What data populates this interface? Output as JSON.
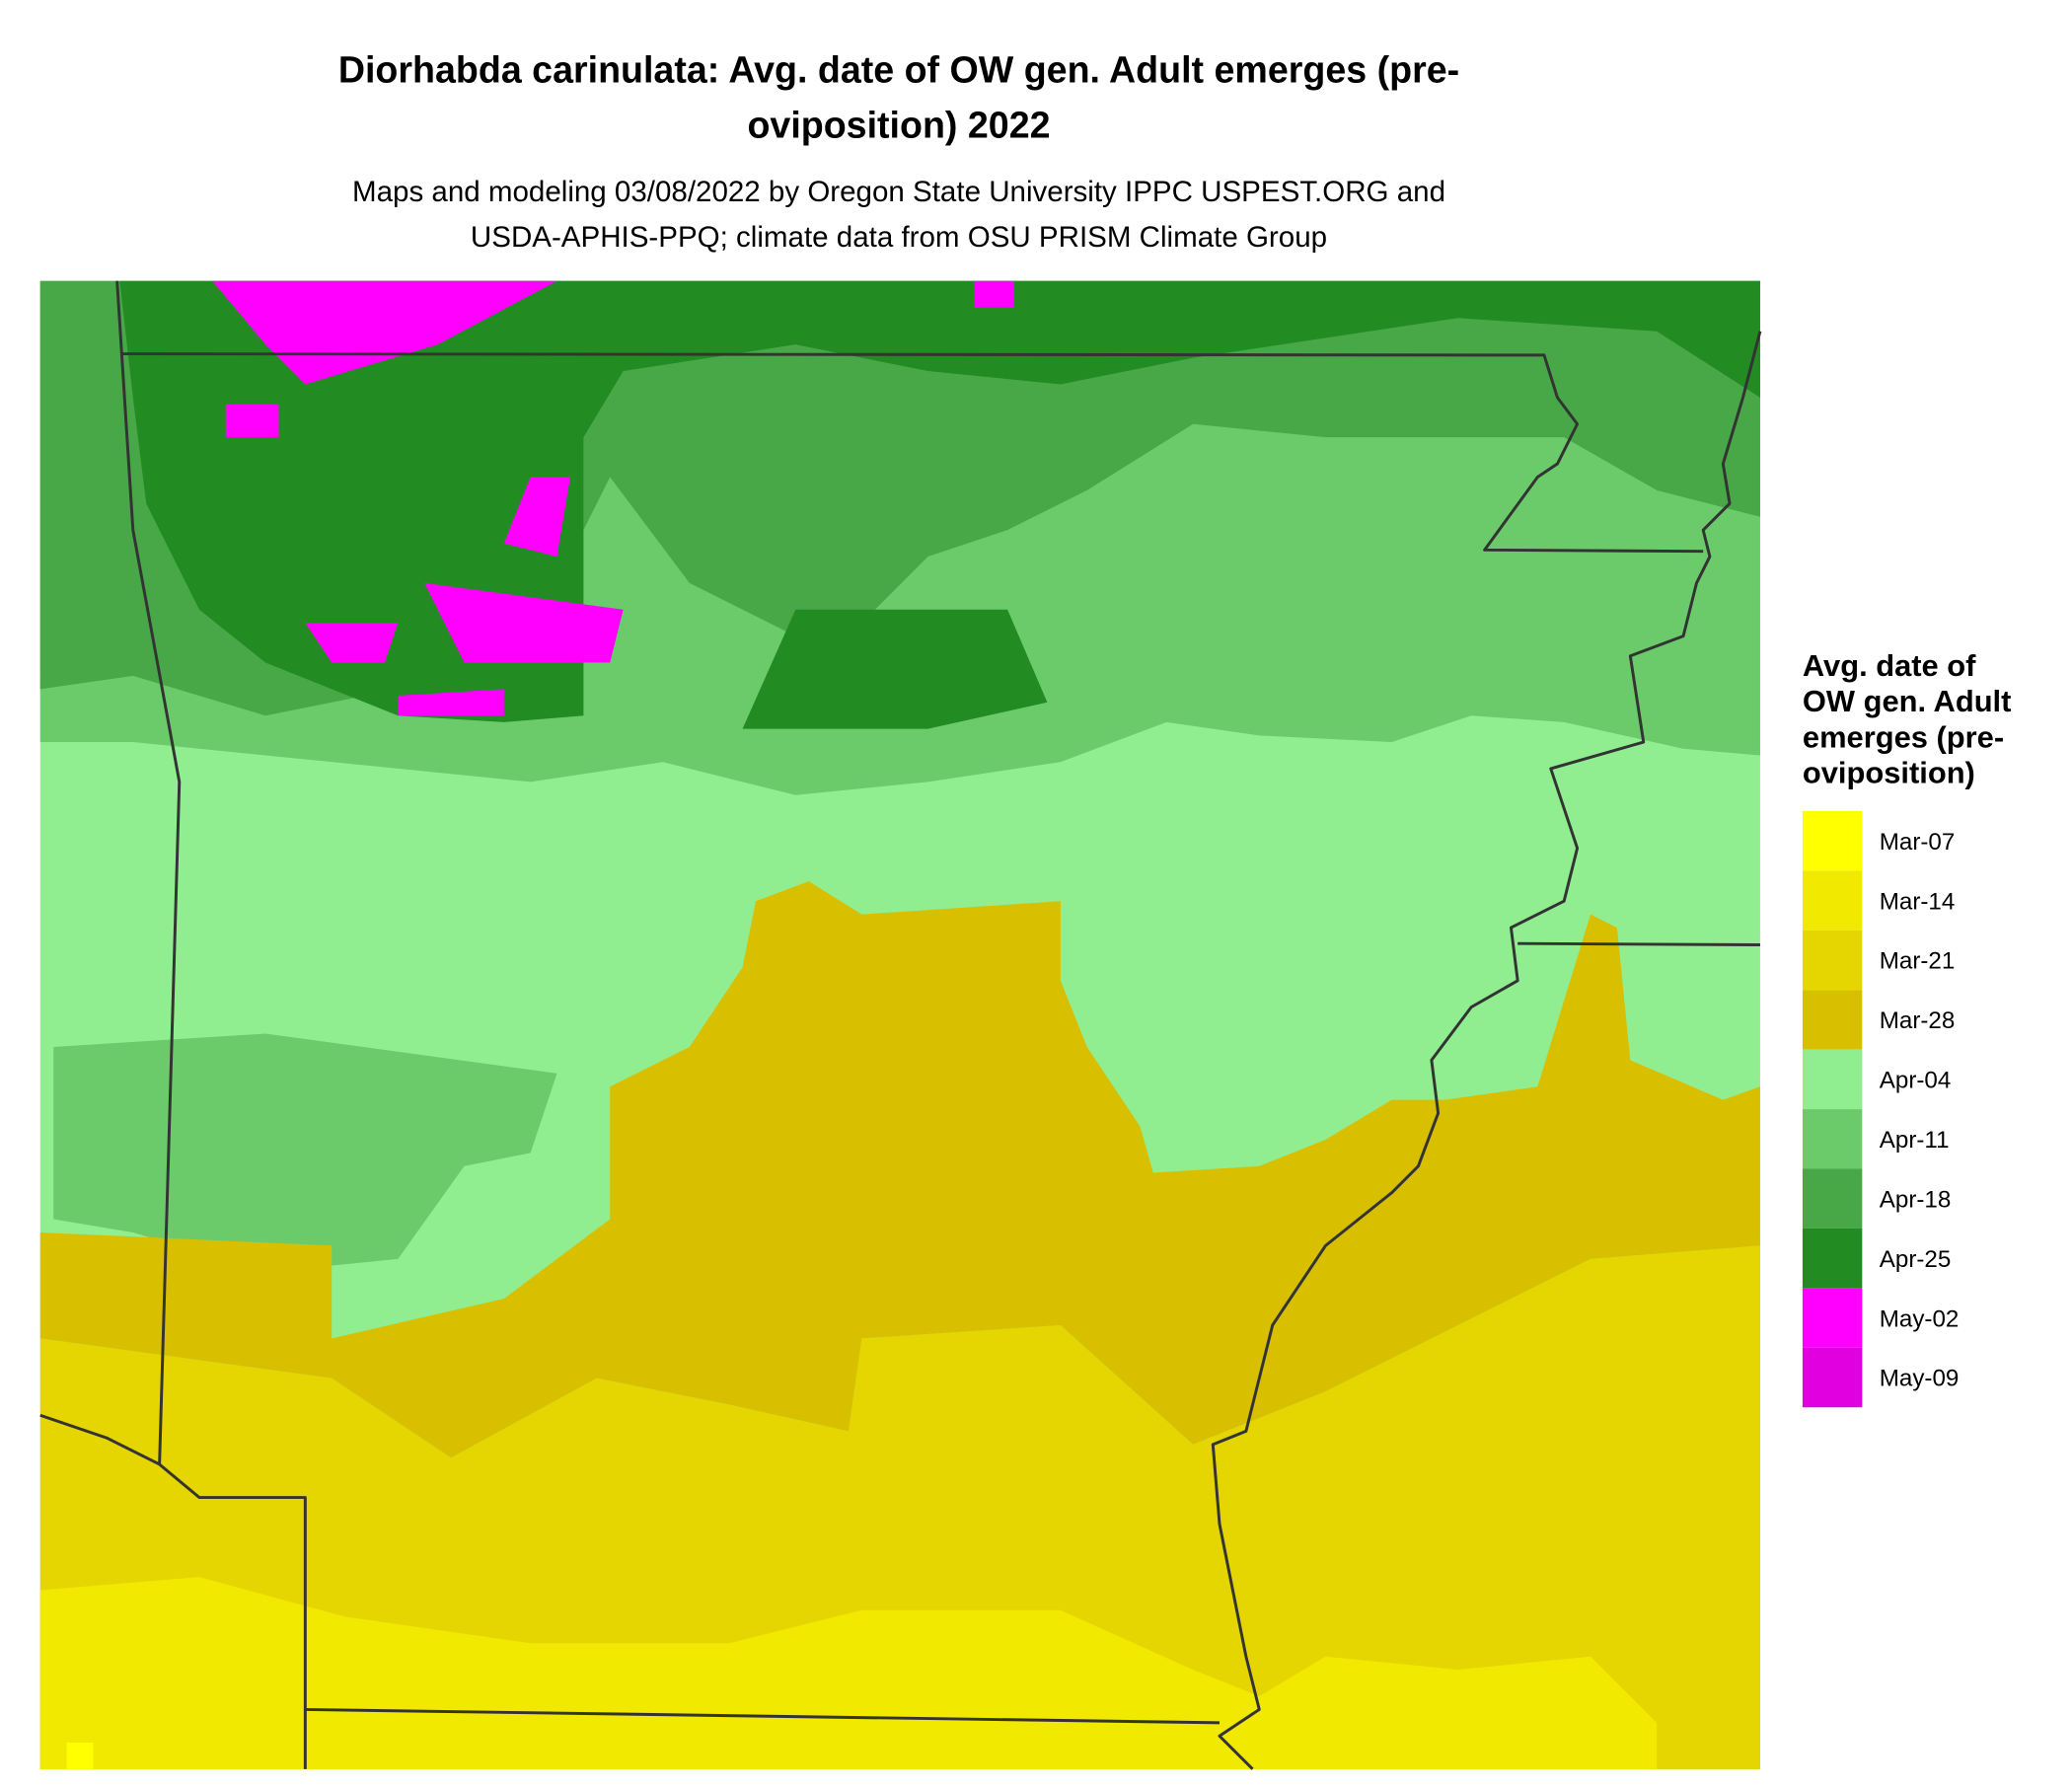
{
  "title": [
    "Diorhabda carinulata: Avg. date of OW gen. Adult emerges (pre-",
    "oviposition) 2022"
  ],
  "subtitle": [
    "Maps and modeling 03/08/2022 by Oregon State University IPPC USPEST.ORG and",
    "USDA-APHIS-PPQ; climate data from OSU PRISM Climate Group"
  ],
  "legend": {
    "title": [
      "Avg. date of",
      "OW gen. Adult",
      "emerges (pre-",
      "oviposition)"
    ],
    "items": [
      {
        "label": "Mar-07",
        "color": "#ffff00"
      },
      {
        "label": "Mar-14",
        "color": "#f2e900"
      },
      {
        "label": "Mar-21",
        "color": "#e5d500"
      },
      {
        "label": "Mar-28",
        "color": "#d8c000"
      },
      {
        "label": "Apr-04",
        "color": "#90ee90"
      },
      {
        "label": "Apr-11",
        "color": "#6bcb6b"
      },
      {
        "label": "Apr-18",
        "color": "#48a848"
      },
      {
        "label": "Apr-25",
        "color": "#228b22"
      },
      {
        "label": "May-02",
        "color": "#ff00ff"
      },
      {
        "label": "May-09",
        "color": "#e000e0"
      }
    ]
  }
}
